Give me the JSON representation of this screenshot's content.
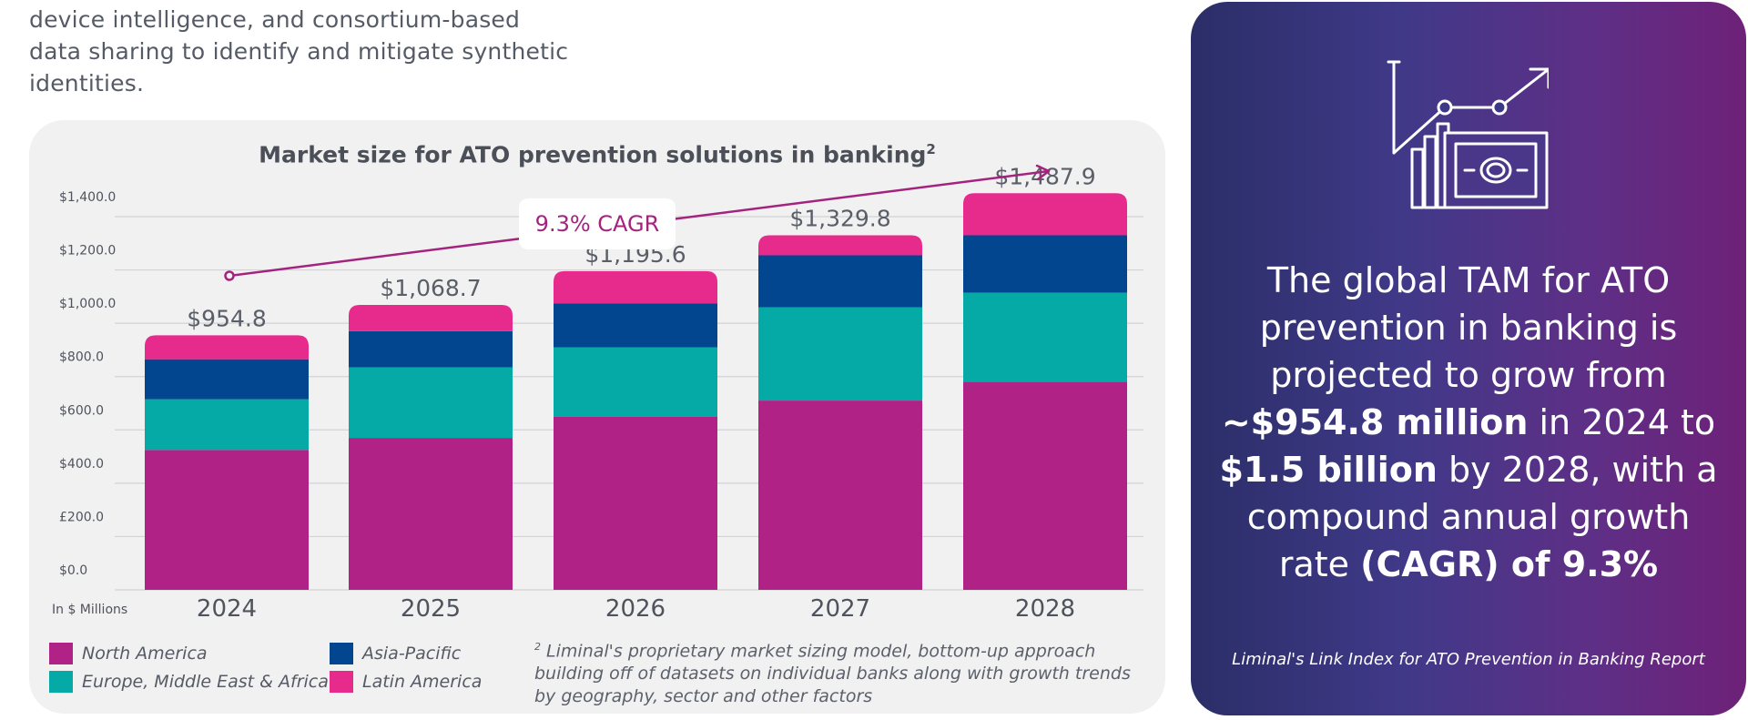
{
  "intro": {
    "line1": "device intelligence, and consortium-based",
    "line2": "data sharing to identify and mitigate synthetic",
    "line3": "identities."
  },
  "chart": {
    "title": "Market size for ATO prevention solutions in banking",
    "title_sup": "2",
    "cagr_label": "9.3% CAGR",
    "units_label": "In $ Millions",
    "footnote_sup": "2",
    "footnote_text": "Liminal's proprietary market sizing model, bottom-up approach building off of datasets on individual banks along with growth trends by geography, sector and other factors"
  },
  "chart_data": {
    "type": "bar",
    "stacked": true,
    "title": "Market size for ATO prevention solutions in banking",
    "categories": [
      "2024",
      "2025",
      "2026",
      "2027",
      "2028"
    ],
    "y_ticks": [
      "$0.0",
      "£200.0",
      "$400.0",
      "$600.0",
      "$800.0",
      "$1,000.0",
      "$1,200.0",
      "$1,400.0"
    ],
    "ylim": [
      0,
      1400
    ],
    "ylabel": "In $ Millions",
    "grid": true,
    "legend_position": "bottom-left",
    "totals": [
      954.8,
      1068.7,
      1195.6,
      1329.8,
      1487.9
    ],
    "total_labels": [
      "$954.8",
      "$1,068.7",
      "$1,195.6",
      "$1,329.8",
      "$1,487.9"
    ],
    "series": [
      {
        "name": "North America",
        "color": "#b02286",
        "values": [
          525,
          570,
          650,
          710,
          780
        ]
      },
      {
        "name": "Europe, Middle East & Africa",
        "color": "#05a9a6",
        "values": [
          190,
          265,
          260,
          350,
          335
        ]
      },
      {
        "name": "Asia-Pacific",
        "color": "#01468f",
        "values": [
          150,
          135,
          165,
          195,
          215
        ]
      },
      {
        "name": "Latin America",
        "color": "#e72b8c",
        "values": [
          89.8,
          98.7,
          120.6,
          74.8,
          157.9
        ]
      }
    ],
    "annotation": "9.3% CAGR"
  },
  "info": {
    "line1": "The global TAM for ATO",
    "line2": "prevention in banking is",
    "line3": "projected to grow from",
    "line4_bold": "~$954.8 million",
    "line4_rest": " in 2024 to",
    "line5_bold": "$1.5 billion",
    "line5_rest": " by 2028, with a",
    "line6": "compound annual growth",
    "line7_rest": "rate ",
    "line7_bold": "(CAGR) of 9.3%",
    "source": "Liminal's Link Index for ATO Prevention in Banking Report"
  },
  "colors": {
    "north_america": "#b02286",
    "emea": "#05a9a6",
    "apac": "#01468f",
    "latam": "#e72b8c",
    "accent": "#a3237f"
  },
  "icons": {
    "info_icon": "growth-chart-money-icon"
  }
}
